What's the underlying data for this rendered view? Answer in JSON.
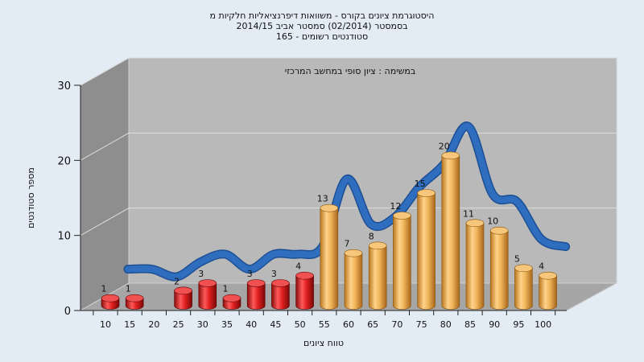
{
  "chart_data": {
    "type": "bar",
    "title_lines": [
      "היסטוגרמת ציונים בקורס - משוואות דיפרנציאליות חלקיות מ",
      "בסמסטר  (02/2014)  סמסטר אביב 2014/15",
      "סטודנטים רשומים - 165"
    ],
    "subtitle": "במשימה : ציון סופי במחשב המרכזי",
    "xlabel": "טווח ציונים",
    "ylabel": "מספר סטודנטים",
    "ylim": [
      0,
      30
    ],
    "yticks": [
      0,
      10,
      20,
      30
    ],
    "categories": [
      "10",
      "15",
      "20",
      "25",
      "30",
      "35",
      "40",
      "45",
      "50",
      "55",
      "60",
      "65",
      "70",
      "75",
      "80",
      "85",
      "90",
      "95",
      "100"
    ],
    "values": [
      1,
      1,
      0,
      2,
      3,
      1,
      3,
      3,
      4,
      13,
      7,
      8,
      12,
      15,
      20,
      11,
      10,
      5,
      4
    ],
    "value_labels": [
      "1",
      "1",
      "",
      "2",
      "3",
      "1",
      "3",
      "3",
      "4",
      "13",
      "7",
      "8",
      "12",
      "15",
      "20",
      "11",
      "10",
      "5",
      "4"
    ],
    "colors": {
      "fail": "#d81e1e",
      "pass": "#e8a540",
      "curve": "#2f6ebf",
      "plot_back": "#b9b9b9",
      "left_wall": "#8e8e8e",
      "floor": "#a6a6a6"
    },
    "pass_threshold_category": "55",
    "grid": true,
    "legend": "none"
  }
}
